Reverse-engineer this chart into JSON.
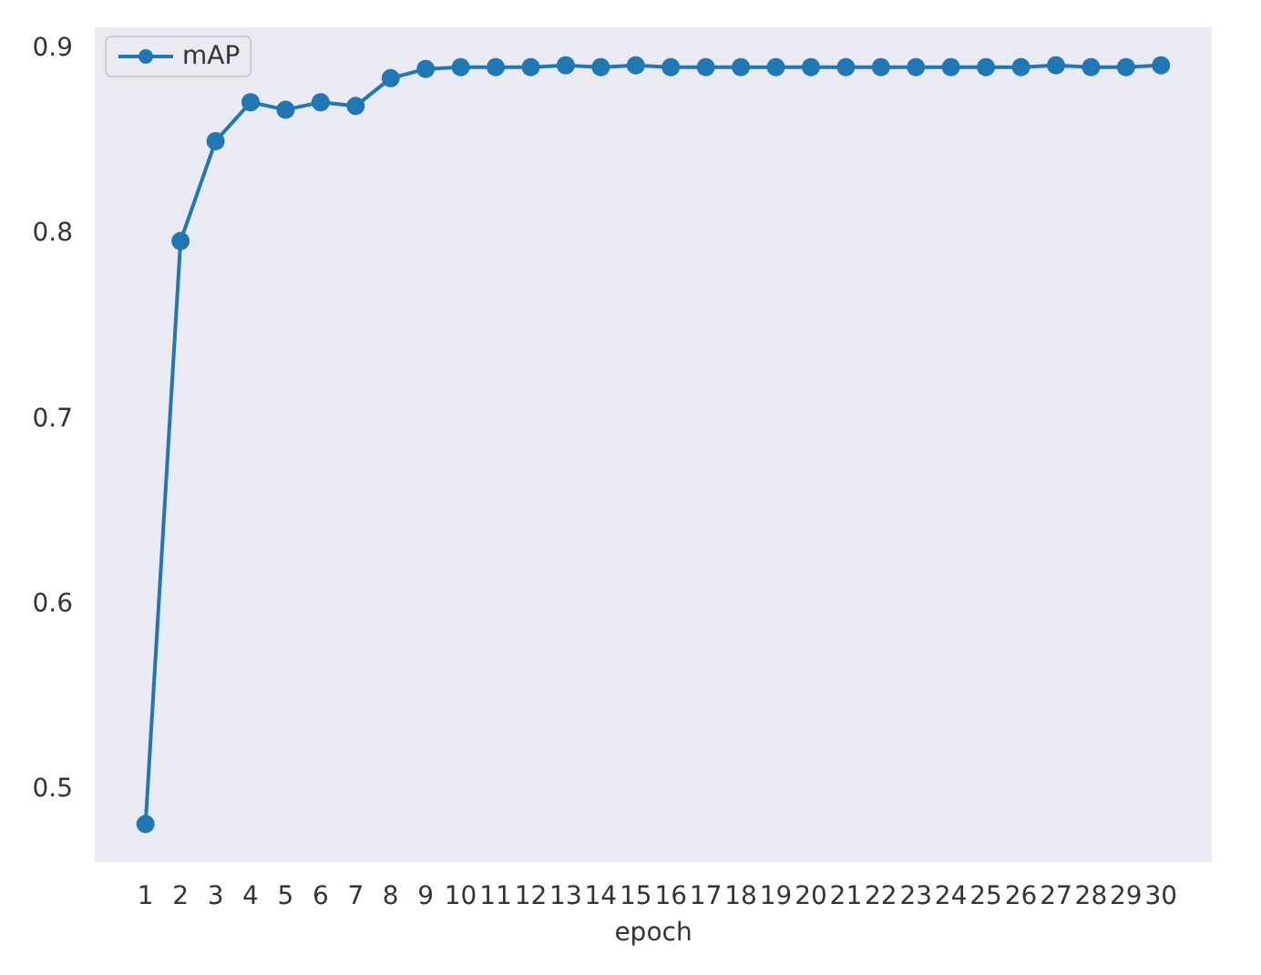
{
  "chart_data": {
    "type": "line",
    "xlabel": "epoch",
    "x": [
      1,
      2,
      3,
      4,
      5,
      6,
      7,
      8,
      9,
      10,
      11,
      12,
      13,
      14,
      15,
      16,
      17,
      18,
      19,
      20,
      21,
      22,
      23,
      24,
      25,
      26,
      27,
      28,
      29,
      30
    ],
    "series": [
      {
        "name": "mAP",
        "color": "#1f77b4",
        "values": [
          0.481,
          0.796,
          0.85,
          0.871,
          0.867,
          0.871,
          0.869,
          0.884,
          0.889,
          0.89,
          0.89,
          0.89,
          0.891,
          0.89,
          0.891,
          0.89,
          0.89,
          0.89,
          0.89,
          0.89,
          0.89,
          0.89,
          0.89,
          0.89,
          0.89,
          0.89,
          0.891,
          0.89,
          0.89,
          0.891
        ]
      }
    ],
    "xlim": [
      -0.45,
      31.45
    ],
    "xticks": [
      1,
      2,
      3,
      4,
      5,
      6,
      7,
      8,
      9,
      10,
      11,
      12,
      13,
      14,
      15,
      16,
      17,
      18,
      19,
      20,
      21,
      22,
      23,
      24,
      25,
      26,
      27,
      28,
      29,
      30
    ],
    "ylim": [
      0.4605,
      0.9115
    ],
    "yticks": [
      0.5,
      0.6,
      0.7,
      0.8,
      0.9
    ],
    "legend": "top left",
    "marker": "circle",
    "grid": false
  }
}
